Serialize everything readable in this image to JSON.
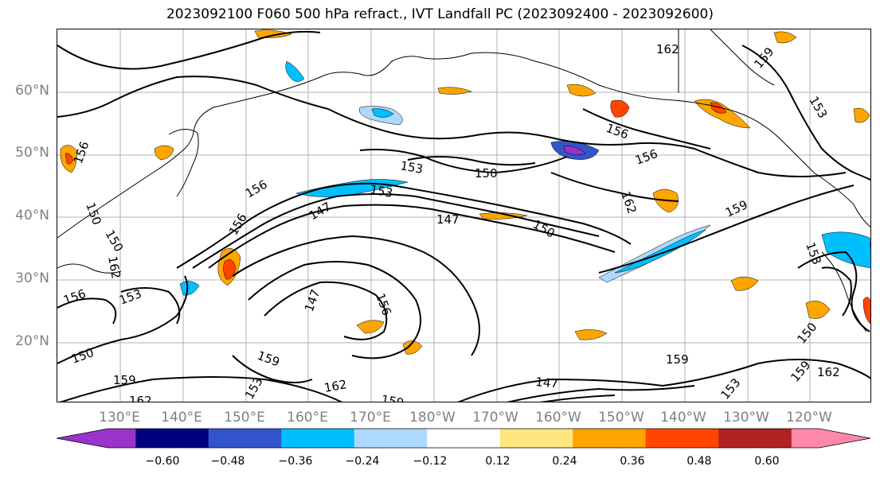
{
  "title": "2023092100 F060 500 hPa refract., IVT Landfall PC (2023092400 - 2023092600)",
  "lat_labels": [
    "60°N",
    "50°N",
    "40°N",
    "30°N",
    "20°N"
  ],
  "lon_labels": [
    "130°E",
    "140°E",
    "150°E",
    "160°E",
    "170°E",
    "180°W",
    "170°W",
    "160°W",
    "150°W",
    "140°W",
    "130°W",
    "120°W"
  ],
  "contour_labels": [
    "162",
    "159",
    "153",
    "156",
    "150",
    "153",
    "156",
    "156",
    "162",
    "159",
    "153",
    "150",
    "147",
    "147",
    "150",
    "156",
    "156",
    "150",
    "162",
    "153",
    "147",
    "156",
    "153",
    "156",
    "150",
    "159",
    "162",
    "159",
    "162",
    "159",
    "147",
    "153",
    "159",
    "153",
    "150",
    "159",
    "162"
  ],
  "colorbar": {
    "ticks": [
      "−0.60",
      "−0.48",
      "−0.36",
      "−0.24",
      "−0.12",
      "0.12",
      "0.24",
      "0.36",
      "0.48",
      "0.60"
    ],
    "colors": [
      "#9933cc",
      "#000080",
      "#3355cc",
      "#00bfff",
      "#add8ff",
      "#ffffff",
      "#ffe680",
      "#ffa500",
      "#ff4500",
      "#b22222",
      "#ff88aa"
    ]
  }
}
